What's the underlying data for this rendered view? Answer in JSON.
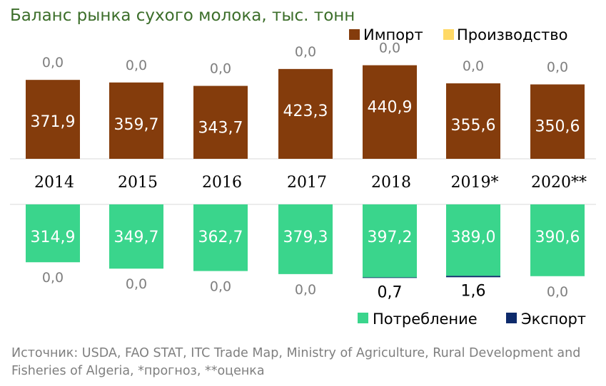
{
  "chart_data": {
    "type": "bar",
    "title": "Баланс рынка сухого молока, тыс. тонн",
    "categories": [
      "2014",
      "2015",
      "2016",
      "2017",
      "2018",
      "2019*",
      "2020**"
    ],
    "top": {
      "series": [
        {
          "name": "Импорт",
          "color": "#843c0c",
          "values": [
            371.9,
            359.7,
            343.7,
            423.3,
            440.9,
            355.6,
            350.6
          ],
          "labels": [
            "371,9",
            "359,7",
            "343,7",
            "423,3",
            "440,9",
            "355,6",
            "350,6"
          ]
        },
        {
          "name": "Производство",
          "color": "#ffd966",
          "values": [
            0,
            0,
            0,
            0,
            0,
            0,
            0
          ],
          "labels": [
            "0,0",
            "0,0",
            "0,0",
            "0,0",
            "0,0",
            "0,0",
            "0,0"
          ]
        }
      ]
    },
    "bottom": {
      "series": [
        {
          "name": "Потребление",
          "color": "#3ad58c",
          "values": [
            314.9,
            349.7,
            362.7,
            379.3,
            397.2,
            389.0,
            390.6
          ],
          "labels": [
            "314,9",
            "349,7",
            "362,7",
            "379,3",
            "397,2",
            "389,0",
            "390,6"
          ]
        },
        {
          "name": "Экспорт",
          "color": "#0d2a6b",
          "values": [
            0,
            0,
            0,
            0,
            0.7,
            1.6,
            0
          ],
          "labels": [
            "0,0",
            "0,0",
            "0,0",
            "0,0",
            "0,7",
            "1,6",
            "0,0"
          ]
        }
      ]
    },
    "legend_top": "top-right",
    "legend_bottom": "bottom-right",
    "source": "Источник: USDA, FAO STAT, ITC Trade Map, Ministry of Agriculture, Rural Development and Fisheries of Algeria, *прогноз, **оценка"
  }
}
